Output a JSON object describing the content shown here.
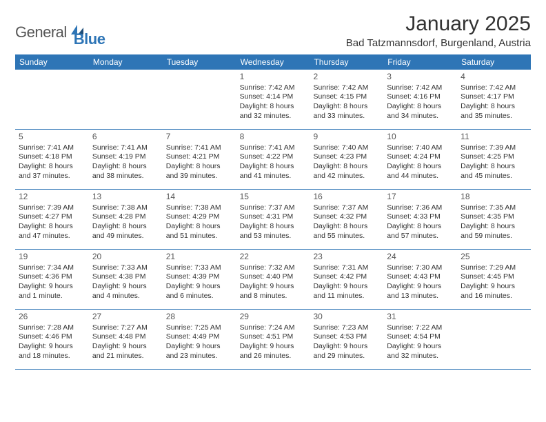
{
  "brand": {
    "name1": "General",
    "name2": "Blue"
  },
  "title": "January 2025",
  "location": "Bad Tatzmannsdorf, Burgenland, Austria",
  "colors": {
    "brand_blue": "#2e75b6",
    "text": "#333333",
    "bg": "#ffffff"
  },
  "day_headers": [
    "Sunday",
    "Monday",
    "Tuesday",
    "Wednesday",
    "Thursday",
    "Friday",
    "Saturday"
  ],
  "weeks": [
    [
      null,
      null,
      null,
      {
        "d": "1",
        "sr": "Sunrise: 7:42 AM",
        "ss": "Sunset: 4:14 PM",
        "dl1": "Daylight: 8 hours",
        "dl2": "and 32 minutes."
      },
      {
        "d": "2",
        "sr": "Sunrise: 7:42 AM",
        "ss": "Sunset: 4:15 PM",
        "dl1": "Daylight: 8 hours",
        "dl2": "and 33 minutes."
      },
      {
        "d": "3",
        "sr": "Sunrise: 7:42 AM",
        "ss": "Sunset: 4:16 PM",
        "dl1": "Daylight: 8 hours",
        "dl2": "and 34 minutes."
      },
      {
        "d": "4",
        "sr": "Sunrise: 7:42 AM",
        "ss": "Sunset: 4:17 PM",
        "dl1": "Daylight: 8 hours",
        "dl2": "and 35 minutes."
      }
    ],
    [
      {
        "d": "5",
        "sr": "Sunrise: 7:41 AM",
        "ss": "Sunset: 4:18 PM",
        "dl1": "Daylight: 8 hours",
        "dl2": "and 37 minutes."
      },
      {
        "d": "6",
        "sr": "Sunrise: 7:41 AM",
        "ss": "Sunset: 4:19 PM",
        "dl1": "Daylight: 8 hours",
        "dl2": "and 38 minutes."
      },
      {
        "d": "7",
        "sr": "Sunrise: 7:41 AM",
        "ss": "Sunset: 4:21 PM",
        "dl1": "Daylight: 8 hours",
        "dl2": "and 39 minutes."
      },
      {
        "d": "8",
        "sr": "Sunrise: 7:41 AM",
        "ss": "Sunset: 4:22 PM",
        "dl1": "Daylight: 8 hours",
        "dl2": "and 41 minutes."
      },
      {
        "d": "9",
        "sr": "Sunrise: 7:40 AM",
        "ss": "Sunset: 4:23 PM",
        "dl1": "Daylight: 8 hours",
        "dl2": "and 42 minutes."
      },
      {
        "d": "10",
        "sr": "Sunrise: 7:40 AM",
        "ss": "Sunset: 4:24 PM",
        "dl1": "Daylight: 8 hours",
        "dl2": "and 44 minutes."
      },
      {
        "d": "11",
        "sr": "Sunrise: 7:39 AM",
        "ss": "Sunset: 4:25 PM",
        "dl1": "Daylight: 8 hours",
        "dl2": "and 45 minutes."
      }
    ],
    [
      {
        "d": "12",
        "sr": "Sunrise: 7:39 AM",
        "ss": "Sunset: 4:27 PM",
        "dl1": "Daylight: 8 hours",
        "dl2": "and 47 minutes."
      },
      {
        "d": "13",
        "sr": "Sunrise: 7:38 AM",
        "ss": "Sunset: 4:28 PM",
        "dl1": "Daylight: 8 hours",
        "dl2": "and 49 minutes."
      },
      {
        "d": "14",
        "sr": "Sunrise: 7:38 AM",
        "ss": "Sunset: 4:29 PM",
        "dl1": "Daylight: 8 hours",
        "dl2": "and 51 minutes."
      },
      {
        "d": "15",
        "sr": "Sunrise: 7:37 AM",
        "ss": "Sunset: 4:31 PM",
        "dl1": "Daylight: 8 hours",
        "dl2": "and 53 minutes."
      },
      {
        "d": "16",
        "sr": "Sunrise: 7:37 AM",
        "ss": "Sunset: 4:32 PM",
        "dl1": "Daylight: 8 hours",
        "dl2": "and 55 minutes."
      },
      {
        "d": "17",
        "sr": "Sunrise: 7:36 AM",
        "ss": "Sunset: 4:33 PM",
        "dl1": "Daylight: 8 hours",
        "dl2": "and 57 minutes."
      },
      {
        "d": "18",
        "sr": "Sunrise: 7:35 AM",
        "ss": "Sunset: 4:35 PM",
        "dl1": "Daylight: 8 hours",
        "dl2": "and 59 minutes."
      }
    ],
    [
      {
        "d": "19",
        "sr": "Sunrise: 7:34 AM",
        "ss": "Sunset: 4:36 PM",
        "dl1": "Daylight: 9 hours",
        "dl2": "and 1 minute."
      },
      {
        "d": "20",
        "sr": "Sunrise: 7:33 AM",
        "ss": "Sunset: 4:38 PM",
        "dl1": "Daylight: 9 hours",
        "dl2": "and 4 minutes."
      },
      {
        "d": "21",
        "sr": "Sunrise: 7:33 AM",
        "ss": "Sunset: 4:39 PM",
        "dl1": "Daylight: 9 hours",
        "dl2": "and 6 minutes."
      },
      {
        "d": "22",
        "sr": "Sunrise: 7:32 AM",
        "ss": "Sunset: 4:40 PM",
        "dl1": "Daylight: 9 hours",
        "dl2": "and 8 minutes."
      },
      {
        "d": "23",
        "sr": "Sunrise: 7:31 AM",
        "ss": "Sunset: 4:42 PM",
        "dl1": "Daylight: 9 hours",
        "dl2": "and 11 minutes."
      },
      {
        "d": "24",
        "sr": "Sunrise: 7:30 AM",
        "ss": "Sunset: 4:43 PM",
        "dl1": "Daylight: 9 hours",
        "dl2": "and 13 minutes."
      },
      {
        "d": "25",
        "sr": "Sunrise: 7:29 AM",
        "ss": "Sunset: 4:45 PM",
        "dl1": "Daylight: 9 hours",
        "dl2": "and 16 minutes."
      }
    ],
    [
      {
        "d": "26",
        "sr": "Sunrise: 7:28 AM",
        "ss": "Sunset: 4:46 PM",
        "dl1": "Daylight: 9 hours",
        "dl2": "and 18 minutes."
      },
      {
        "d": "27",
        "sr": "Sunrise: 7:27 AM",
        "ss": "Sunset: 4:48 PM",
        "dl1": "Daylight: 9 hours",
        "dl2": "and 21 minutes."
      },
      {
        "d": "28",
        "sr": "Sunrise: 7:25 AM",
        "ss": "Sunset: 4:49 PM",
        "dl1": "Daylight: 9 hours",
        "dl2": "and 23 minutes."
      },
      {
        "d": "29",
        "sr": "Sunrise: 7:24 AM",
        "ss": "Sunset: 4:51 PM",
        "dl1": "Daylight: 9 hours",
        "dl2": "and 26 minutes."
      },
      {
        "d": "30",
        "sr": "Sunrise: 7:23 AM",
        "ss": "Sunset: 4:53 PM",
        "dl1": "Daylight: 9 hours",
        "dl2": "and 29 minutes."
      },
      {
        "d": "31",
        "sr": "Sunrise: 7:22 AM",
        "ss": "Sunset: 4:54 PM",
        "dl1": "Daylight: 9 hours",
        "dl2": "and 32 minutes."
      },
      null
    ]
  ]
}
